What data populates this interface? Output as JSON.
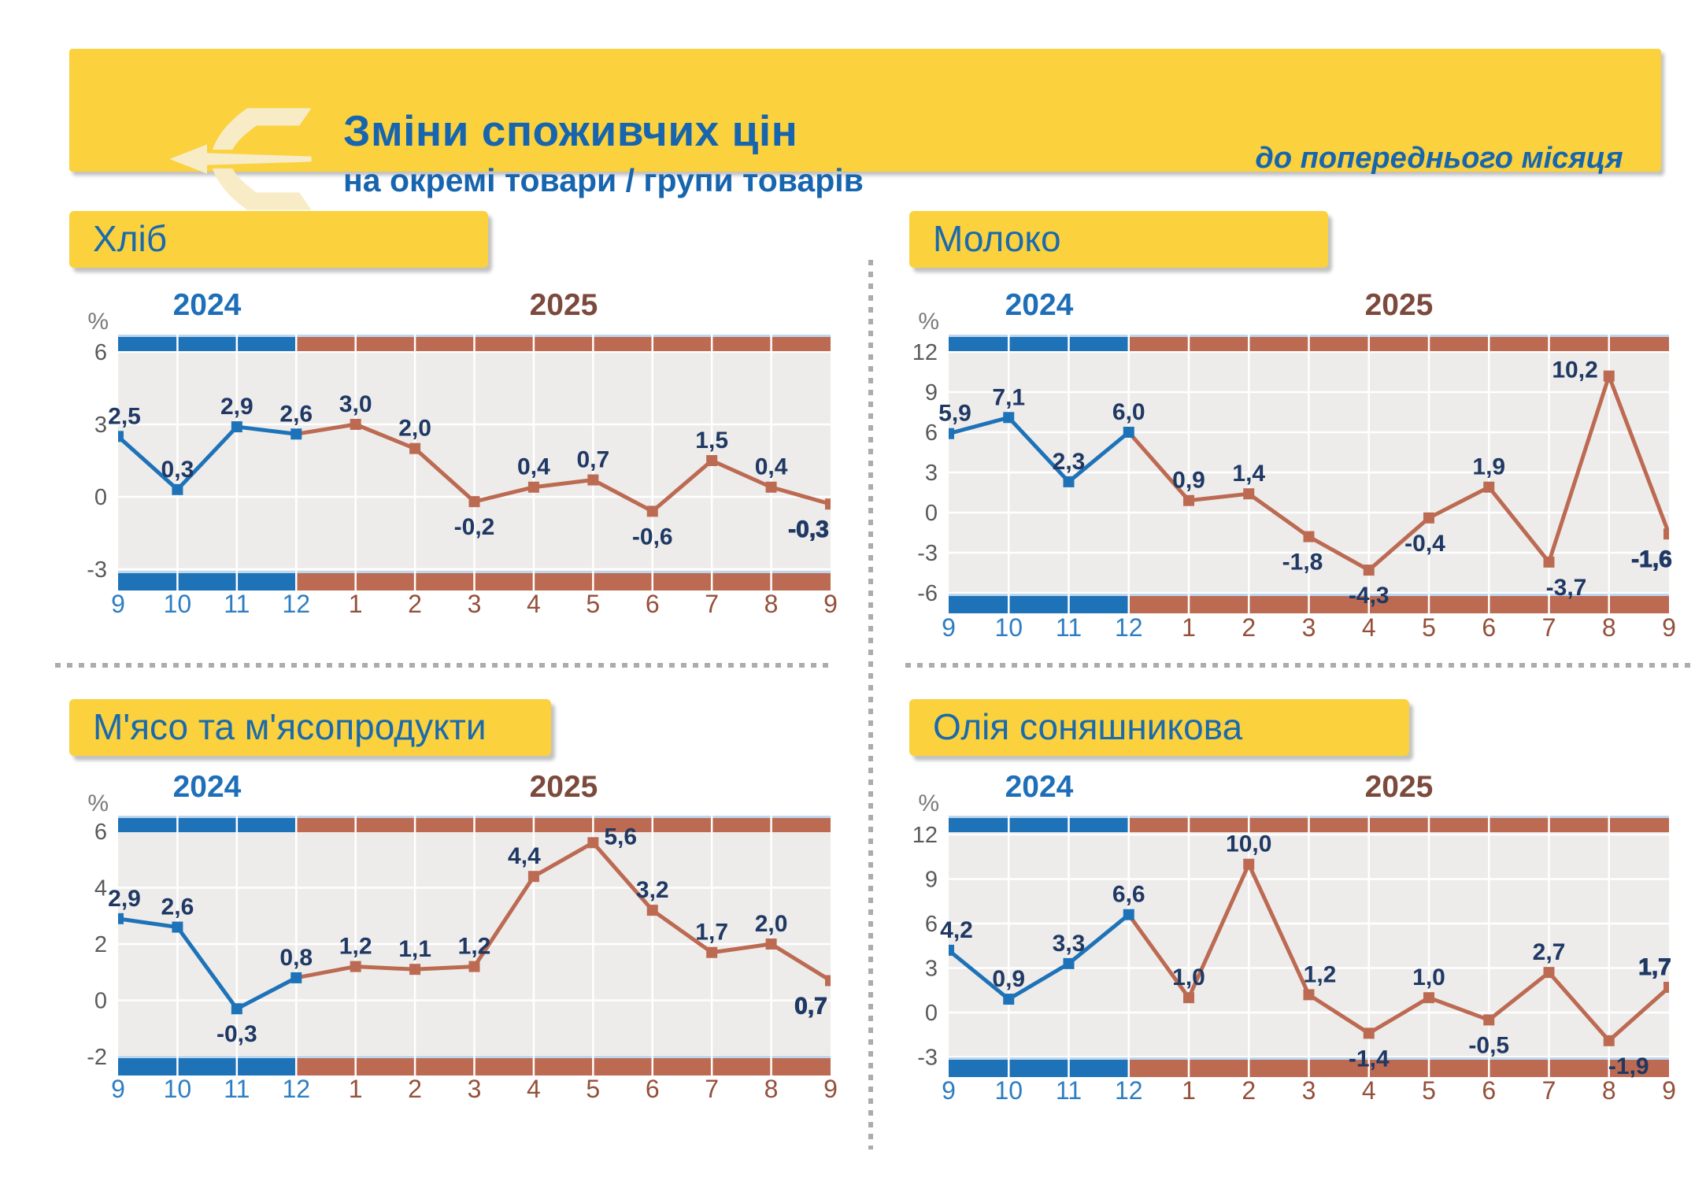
{
  "header": {
    "title": "Зміни споживчих цін",
    "subtitle": "на окремі товари / групи товарів",
    "note": "до попереднього місяця",
    "logo": "state-statistics-service-sigma-arrow-logo"
  },
  "colors": {
    "yellow": "#FBD13D",
    "header_text_blue": "#1765AE",
    "title_blue": "#1A6AAD",
    "series_blue": "#1E72B8",
    "series_brown": "#BC6A52",
    "year_2025_brown": "#7B4A3C",
    "x_label_blue": "#2E7DC2",
    "x_label_brown": "#94503A",
    "point_label_navy": "#1F3864",
    "tick_gray": "#5A5A5A",
    "plot_bg": "#EDECEA",
    "band_edge_pale_blue": "#BDD7EE",
    "divider_gray": "#ACACAC",
    "logo_cream": "#F7ECC6"
  },
  "chart_data": [
    {
      "type": "line",
      "title": "Хліб",
      "unit": "%",
      "year_labels": [
        "2024",
        "2025"
      ],
      "x": [
        "9",
        "10",
        "11",
        "12",
        "1",
        "2",
        "3",
        "4",
        "5",
        "6",
        "7",
        "8",
        "9"
      ],
      "x_year_split": 4,
      "values": [
        2.5,
        0.3,
        2.9,
        2.6,
        3.0,
        2.0,
        -0.2,
        0.4,
        0.7,
        -0.6,
        1.5,
        0.4,
        -0.3
      ],
      "point_labels": [
        "2,5",
        "0,3",
        "2,9",
        "2,6",
        "3,0",
        "2,0",
        "-0,2",
        "0,4",
        "0,7",
        "-0,6",
        "1,5",
        "0,4",
        "-0,3"
      ],
      "label_side": [
        "a",
        "a",
        "a",
        "a",
        "a",
        "a",
        "b",
        "a",
        "a",
        "b",
        "a",
        "a",
        "b"
      ],
      "label_dx": [
        8,
        0,
        0,
        0,
        0,
        0,
        0,
        0,
        0,
        0,
        0,
        0,
        -28
      ],
      "yticks": [
        6,
        3,
        0,
        -3
      ],
      "last_label_bold": true,
      "legend": {
        "2024": "blue",
        "2025": "brown"
      },
      "grid": true
    },
    {
      "type": "line",
      "title": "Молоко",
      "unit": "%",
      "year_labels": [
        "2024",
        "2025"
      ],
      "x": [
        "9",
        "10",
        "11",
        "12",
        "1",
        "2",
        "3",
        "4",
        "5",
        "6",
        "7",
        "8",
        "9"
      ],
      "x_year_split": 4,
      "values": [
        5.9,
        7.1,
        2.3,
        6.0,
        0.9,
        1.4,
        -1.8,
        -4.3,
        -0.4,
        1.9,
        -3.7,
        10.2,
        -1.6
      ],
      "point_labels": [
        "5,9",
        "7,1",
        "2,3",
        "6,0",
        "0,9",
        "1,4",
        "-1,8",
        "-4,3",
        "-0,4",
        "1,9",
        "-3,7",
        "10,2",
        "-1,6"
      ],
      "label_side": [
        "a",
        "a",
        "a",
        "a",
        "a",
        "a",
        "b",
        "b",
        "b",
        "a",
        "b",
        "l",
        "b"
      ],
      "label_dx": [
        8,
        0,
        0,
        0,
        0,
        0,
        -8,
        0,
        -5,
        0,
        22,
        0,
        -22
      ],
      "yticks": [
        12,
        9,
        6,
        3,
        0,
        -3,
        -6
      ],
      "last_label_bold": true,
      "legend": {
        "2024": "blue",
        "2025": "brown"
      },
      "grid": true
    },
    {
      "type": "line",
      "title": "М'ясо та м'ясопродукти",
      "unit": "%",
      "year_labels": [
        "2024",
        "2025"
      ],
      "x": [
        "9",
        "10",
        "11",
        "12",
        "1",
        "2",
        "3",
        "4",
        "5",
        "6",
        "7",
        "8",
        "9"
      ],
      "x_year_split": 4,
      "values": [
        2.9,
        2.6,
        -0.3,
        0.8,
        1.2,
        1.1,
        1.2,
        4.4,
        5.6,
        3.2,
        1.7,
        2.0,
        0.7
      ],
      "point_labels": [
        "2,9",
        "2,6",
        "-0,3",
        "0,8",
        "1,2",
        "1,1",
        "1,2",
        "4,4",
        "5,6",
        "3,2",
        "1,7",
        "2,0",
        "0,7"
      ],
      "label_side": [
        "a",
        "a",
        "b",
        "a",
        "a",
        "a",
        "a",
        "a",
        "r",
        "a",
        "a",
        "a",
        "b"
      ],
      "label_dx": [
        8,
        0,
        0,
        0,
        0,
        0,
        0,
        -12,
        0,
        0,
        0,
        0,
        -25
      ],
      "yticks": [
        6,
        4,
        2,
        0,
        -2
      ],
      "last_label_bold": true,
      "legend": {
        "2024": "blue",
        "2025": "brown"
      },
      "grid": true
    },
    {
      "type": "line",
      "title": "Олія соняшникова",
      "unit": "%",
      "year_labels": [
        "2024",
        "2025"
      ],
      "x": [
        "9",
        "10",
        "11",
        "12",
        "1",
        "2",
        "3",
        "4",
        "5",
        "6",
        "7",
        "8",
        "9"
      ],
      "x_year_split": 4,
      "values": [
        4.2,
        0.9,
        3.3,
        6.6,
        1.0,
        10.0,
        1.2,
        -1.4,
        1.0,
        -0.5,
        2.7,
        -1.9,
        1.7
      ],
      "point_labels": [
        "4,2",
        "0,9",
        "3,3",
        "6,6",
        "1,0",
        "10,0",
        "1,2",
        "-1,4",
        "1,0",
        "-0,5",
        "2,7",
        "-1,9",
        "1,7"
      ],
      "label_side": [
        "a",
        "a",
        "a",
        "a",
        "a",
        "a",
        "a",
        "b",
        "a",
        "b",
        "a",
        "b",
        "a"
      ],
      "label_dx": [
        10,
        0,
        0,
        0,
        0,
        0,
        14,
        0,
        0,
        0,
        0,
        25,
        -18
      ],
      "yticks": [
        12,
        9,
        6,
        3,
        0,
        -3
      ],
      "last_label_bold": true,
      "legend": {
        "2024": "blue",
        "2025": "brown"
      },
      "grid": true
    }
  ]
}
